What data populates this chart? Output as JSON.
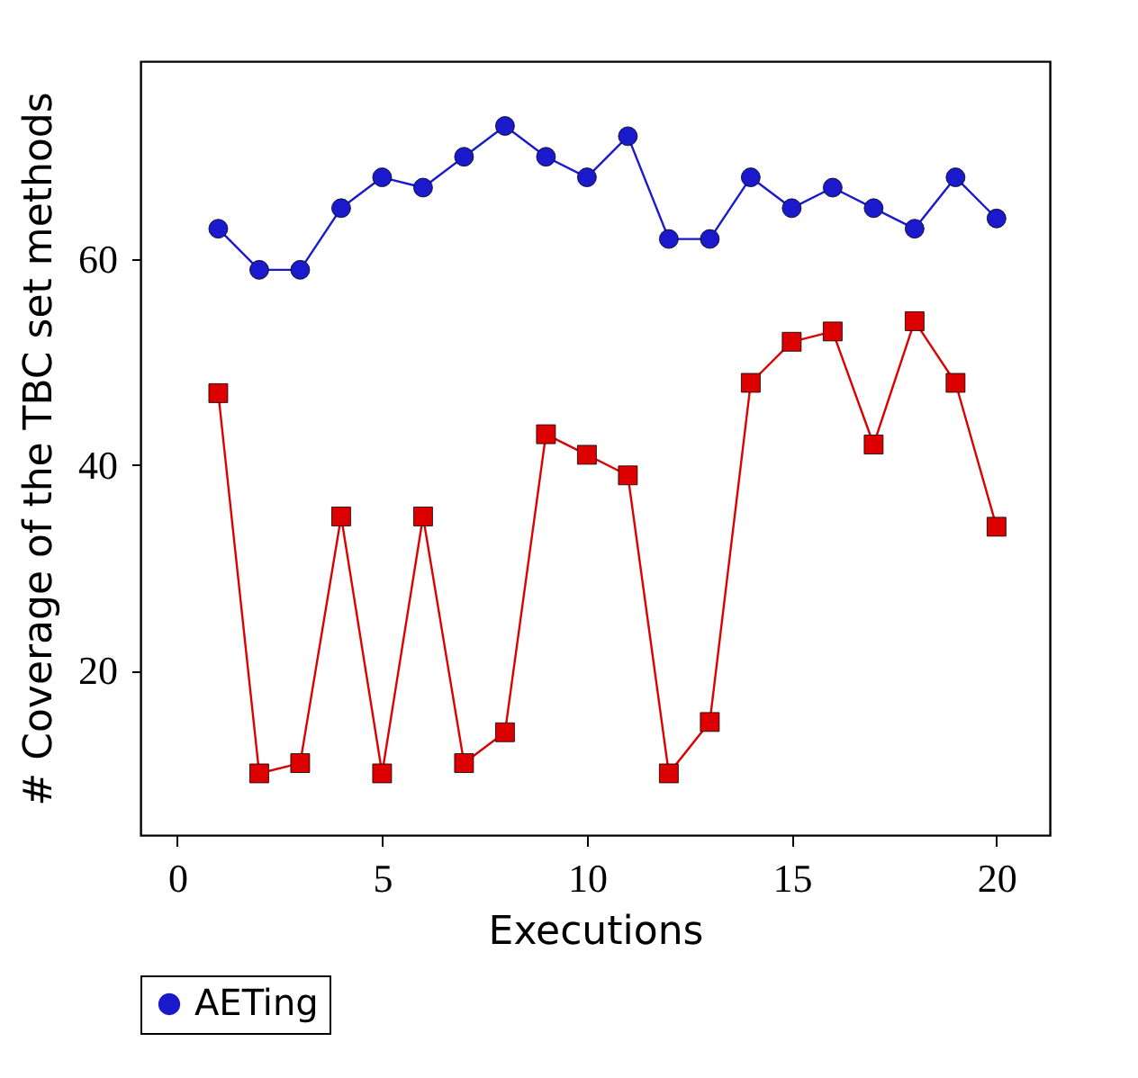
{
  "chart_data": {
    "type": "line",
    "xlabel": "Executions",
    "ylabel": "# Coverage of the TBC set methods",
    "x": [
      1,
      2,
      3,
      4,
      5,
      6,
      7,
      8,
      9,
      10,
      11,
      12,
      13,
      14,
      15,
      16,
      17,
      18,
      19,
      20
    ],
    "series": [
      {
        "name": "AETing",
        "color": "#1a1acc",
        "marker": "circle",
        "values": [
          63,
          59,
          59,
          65,
          68,
          67,
          70,
          73,
          70,
          68,
          72,
          62,
          62,
          68,
          65,
          67,
          65,
          63,
          68,
          64
        ]
      },
      {
        "color": "#dd0000",
        "marker": "square",
        "values": [
          47,
          10,
          11,
          35,
          10,
          35,
          11,
          14,
          43,
          41,
          39,
          10,
          15,
          48,
          52,
          53,
          42,
          54,
          48,
          34
        ]
      }
    ],
    "xlim": [
      -0.9,
      21.3
    ],
    "xticks": [
      0,
      5,
      10,
      15,
      20
    ],
    "ylim": [
      4,
      79.3
    ],
    "yticks": [
      20,
      40,
      60
    ],
    "grid": false,
    "legend": "bottom"
  }
}
